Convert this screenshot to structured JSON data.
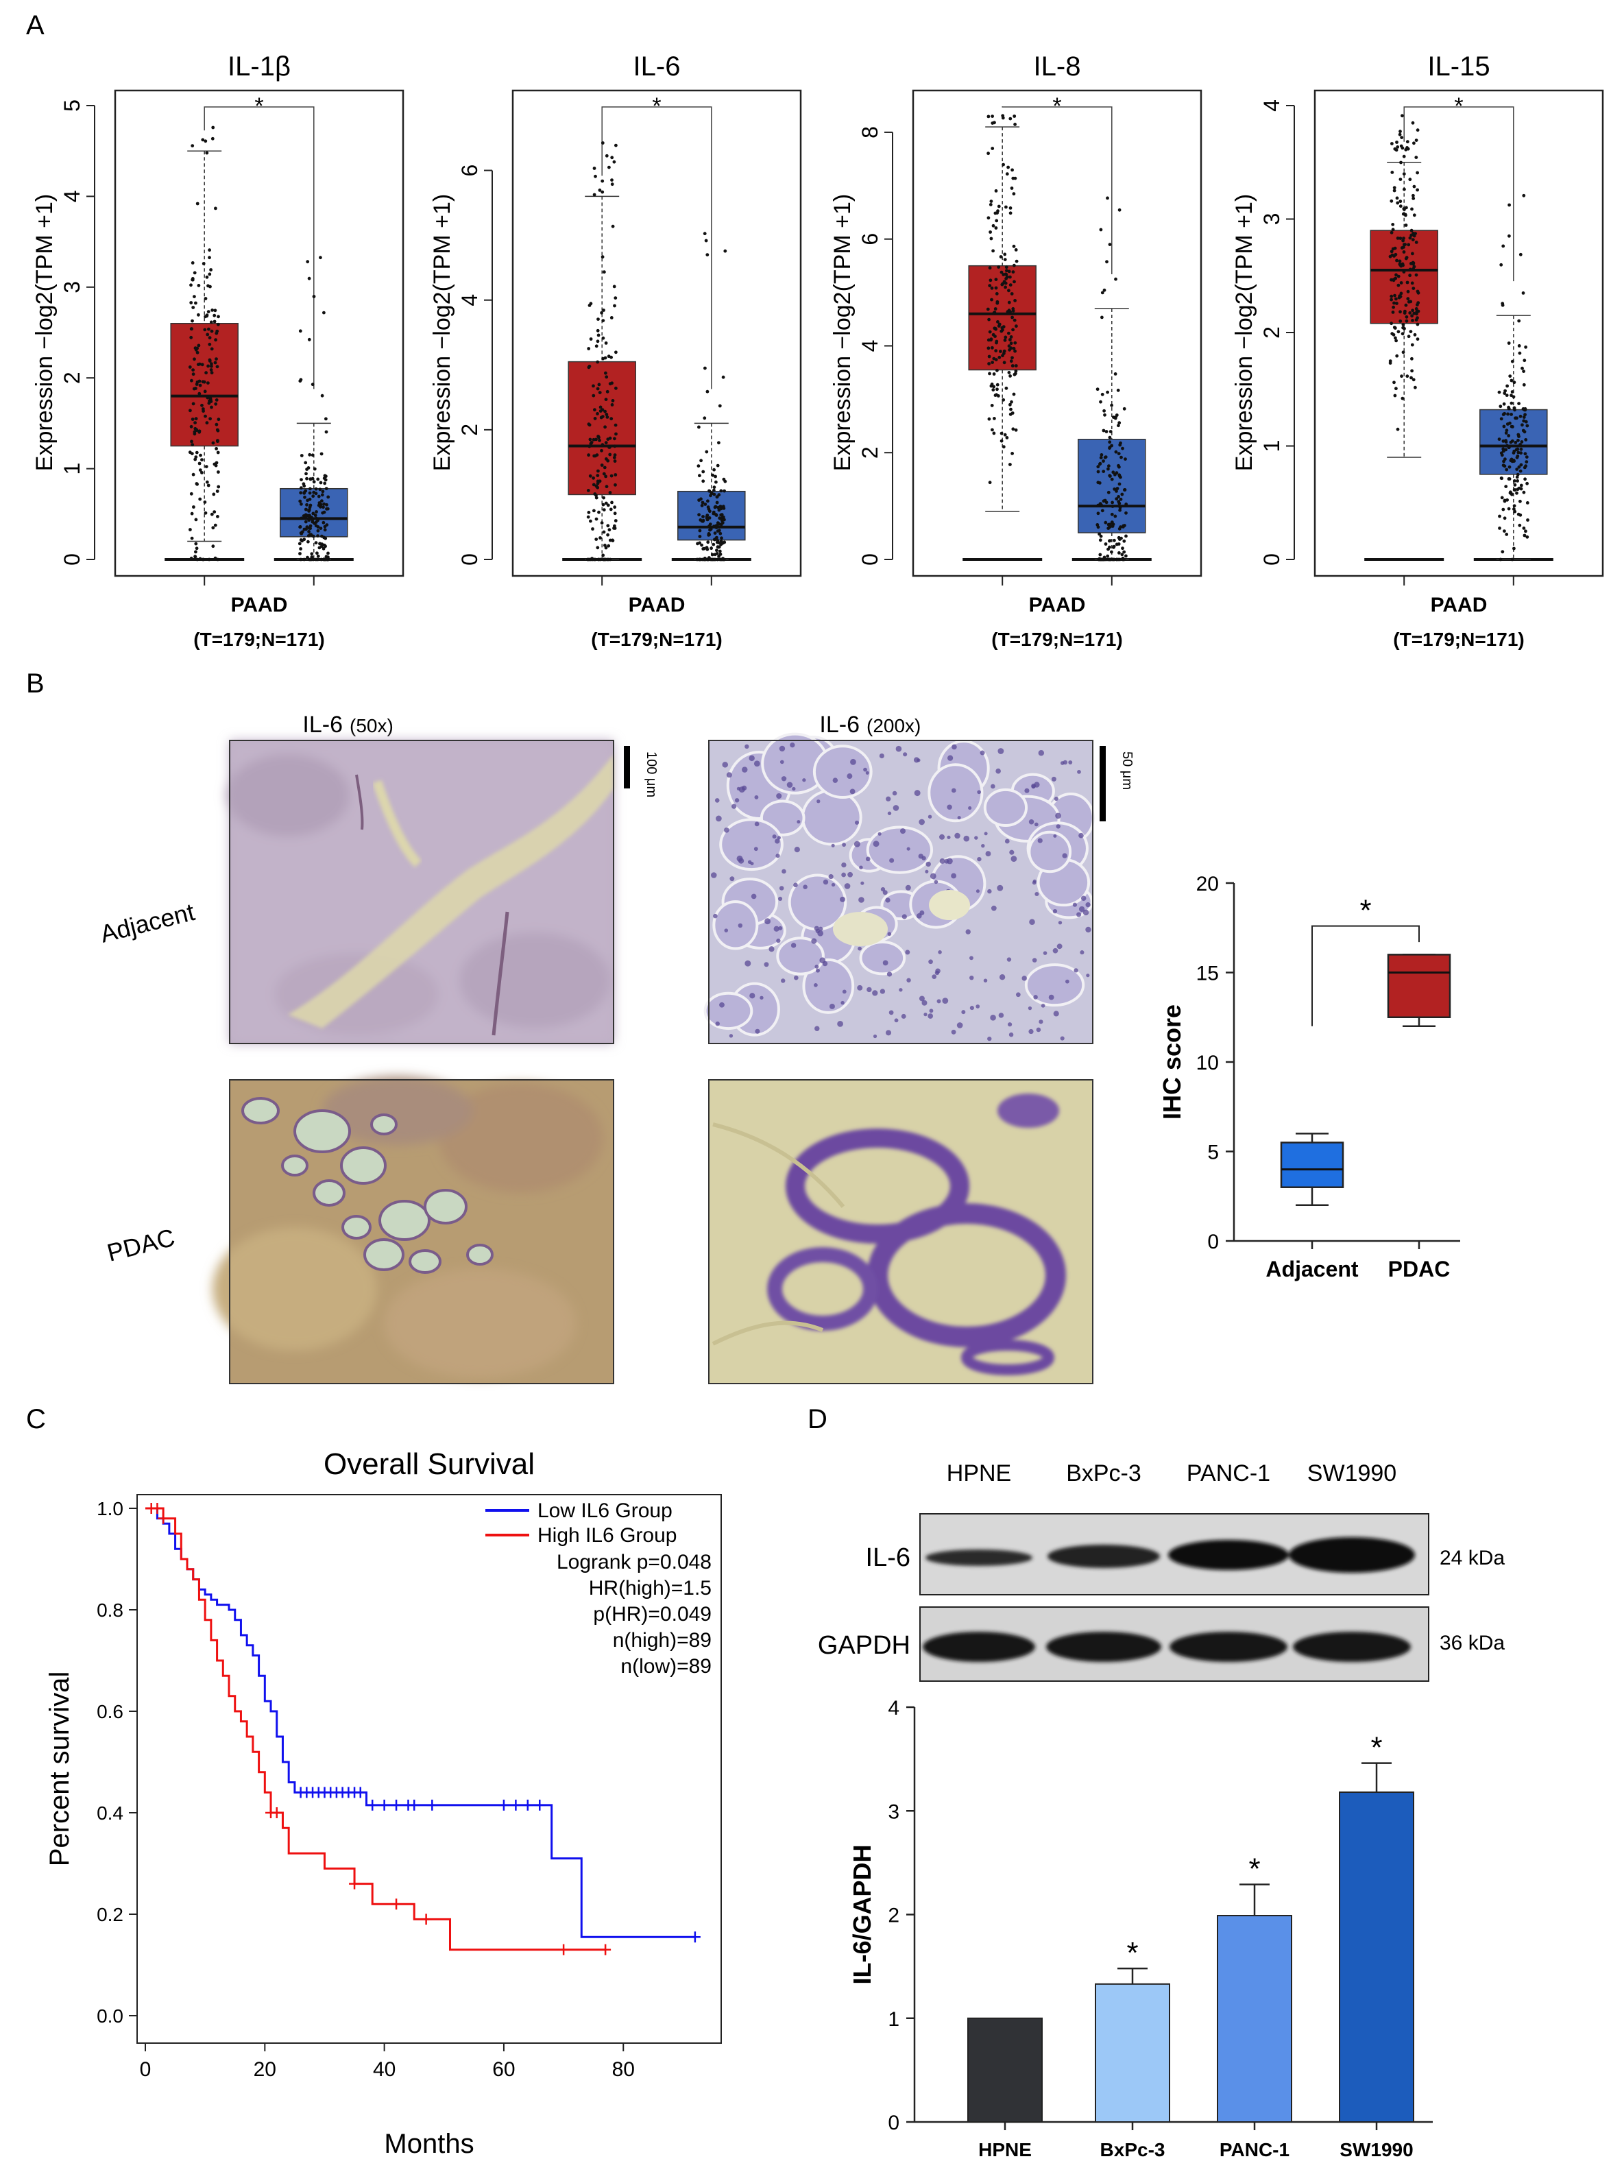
{
  "panel_labels": {
    "a": "A",
    "b": "B",
    "c": "C",
    "d": "D"
  },
  "chart_data": [
    {
      "id": "il1b",
      "type": "box",
      "title": "IL-1β",
      "ylabel": "Expression −log2(TPM +1)",
      "ylim": [
        0,
        5
      ],
      "yticks": [
        0,
        1,
        2,
        3,
        4,
        5
      ],
      "xlabel": "PAAD",
      "xsublabel": "(T=179;N=171)",
      "significance": "*",
      "boxes": [
        {
          "group": "T",
          "color": "#b22222",
          "min": 0.2,
          "q1": 1.25,
          "median": 1.8,
          "q3": 2.6,
          "max": 4.5,
          "n": 179
        },
        {
          "group": "N",
          "color": "#3a64b4",
          "min": 0.0,
          "q1": 0.25,
          "median": 0.45,
          "q3": 0.78,
          "max": 1.5,
          "n": 171
        }
      ]
    },
    {
      "id": "il6",
      "type": "box",
      "title": "IL-6",
      "ylabel": "Expression −log2(TPM +1)",
      "ylim": [
        0,
        7
      ],
      "yticks": [
        0,
        2,
        4,
        6
      ],
      "xlabel": "PAAD",
      "xsublabel": "(T=179;N=171)",
      "significance": "*",
      "boxes": [
        {
          "group": "T",
          "color": "#b22222",
          "min": 0.0,
          "q1": 1.0,
          "median": 1.75,
          "q3": 3.05,
          "max": 5.6,
          "n": 179
        },
        {
          "group": "N",
          "color": "#3a64b4",
          "min": 0.0,
          "q1": 0.3,
          "median": 0.5,
          "q3": 1.05,
          "max": 2.1,
          "n": 171
        }
      ]
    },
    {
      "id": "il8",
      "type": "box",
      "title": "IL-8",
      "ylabel": "Expression −log2(TPM +1)",
      "ylim": [
        0,
        8.5
      ],
      "yticks": [
        0,
        2,
        4,
        6,
        8
      ],
      "xlabel": "PAAD",
      "xsublabel": "(T=179;N=171)",
      "significance": "*",
      "boxes": [
        {
          "group": "T",
          "color": "#b22222",
          "min": 0.9,
          "q1": 3.55,
          "median": 4.6,
          "q3": 5.5,
          "max": 8.1,
          "n": 179
        },
        {
          "group": "N",
          "color": "#3a64b4",
          "min": 0.0,
          "q1": 0.5,
          "median": 1.0,
          "q3": 2.25,
          "max": 4.7,
          "n": 171
        }
      ]
    },
    {
      "id": "il15",
      "type": "box",
      "title": "IL-15",
      "ylabel": "Expression −log2(TPM +1)",
      "ylim": [
        0,
        4
      ],
      "yticks": [
        0,
        1,
        2,
        3,
        4
      ],
      "xlabel": "PAAD",
      "xsublabel": "(T=179;N=171)",
      "significance": "*",
      "boxes": [
        {
          "group": "T",
          "color": "#b22222",
          "min": 0.9,
          "q1": 2.08,
          "median": 2.55,
          "q3": 2.9,
          "max": 3.5,
          "n": 179
        },
        {
          "group": "N",
          "color": "#3a64b4",
          "min": 0.0,
          "q1": 0.75,
          "median": 1.0,
          "q3": 1.32,
          "max": 2.15,
          "n": 171
        }
      ]
    },
    {
      "id": "ihc",
      "type": "box",
      "title": "",
      "ylabel": "IHC score",
      "ylim": [
        0,
        20
      ],
      "yticks": [
        0,
        5,
        10,
        15,
        20
      ],
      "categories": [
        "Adjacent",
        "PDAC"
      ],
      "significance": "*",
      "boxes": [
        {
          "group": "Adjacent",
          "color": "#1f6fe0",
          "min": 2,
          "q1": 3,
          "median": 4,
          "q3": 5.5,
          "max": 6
        },
        {
          "group": "PDAC",
          "color": "#b22222",
          "min": 12,
          "q1": 12.5,
          "median": 15,
          "q3": 16,
          "max": 16
        }
      ]
    },
    {
      "id": "survival",
      "type": "line",
      "title": "Overall Survival",
      "xlabel": "Months",
      "ylabel": "Percent survival",
      "xlim": [
        0,
        95
      ],
      "ylim": [
        0,
        1.0
      ],
      "xticks": [
        0,
        20,
        40,
        60,
        80
      ],
      "yticks": [
        0.0,
        0.2,
        0.4,
        0.6,
        0.8,
        1.0
      ],
      "stats": [
        "Logrank p=0.048",
        "HR(high)=1.5",
        "p(HR)=0.049",
        "n(high)=89",
        "n(low)=89"
      ],
      "series": [
        {
          "name": "Low IL6 Group",
          "color": "#1010ee",
          "x": [
            0,
            2,
            3,
            4,
            5,
            6,
            7,
            8,
            9,
            10,
            11,
            12,
            14,
            15,
            16,
            17,
            18,
            19,
            20,
            21,
            22,
            23,
            24,
            25,
            37,
            68,
            73,
            92
          ],
          "y": [
            1.0,
            0.98,
            0.97,
            0.95,
            0.92,
            0.9,
            0.88,
            0.86,
            0.84,
            0.83,
            0.82,
            0.81,
            0.8,
            0.78,
            0.75,
            0.73,
            0.71,
            0.67,
            0.62,
            0.6,
            0.55,
            0.5,
            0.46,
            0.44,
            0.415,
            0.31,
            0.155,
            0.155
          ],
          "censor_x": [
            26,
            27,
            28,
            29,
            30,
            31,
            32,
            33,
            34,
            35,
            36,
            38,
            40,
            42,
            44,
            45,
            48,
            60,
            62,
            64,
            66,
            92
          ]
        },
        {
          "name": "High IL6 Group",
          "color": "#ee1010",
          "x": [
            0,
            3,
            5,
            6,
            7,
            8,
            9,
            10,
            11,
            12,
            13,
            14,
            15,
            16,
            17,
            18,
            19,
            20,
            21,
            23,
            24,
            30,
            35,
            38,
            45,
            51,
            77
          ],
          "y": [
            1.0,
            0.98,
            0.95,
            0.9,
            0.88,
            0.86,
            0.82,
            0.78,
            0.74,
            0.7,
            0.67,
            0.63,
            0.6,
            0.58,
            0.55,
            0.52,
            0.48,
            0.44,
            0.4,
            0.37,
            0.32,
            0.29,
            0.26,
            0.22,
            0.19,
            0.13,
            0.13
          ],
          "censor_x": [
            1,
            2,
            3,
            21,
            22,
            35,
            42,
            47,
            70,
            77
          ]
        }
      ]
    },
    {
      "id": "wb_quant",
      "type": "bar",
      "title": "",
      "ylabel": "IL-6/GAPDH",
      "ylim": [
        0,
        4
      ],
      "yticks": [
        0,
        1,
        2,
        3,
        4
      ],
      "categories": [
        "HPNE",
        "BxPc-3",
        "PANC-1",
        "SW1990"
      ],
      "values": [
        1.0,
        1.33,
        1.99,
        3.18
      ],
      "errors": [
        0,
        0.15,
        0.3,
        0.28
      ],
      "significance": [
        "",
        "*",
        "*",
        "*"
      ],
      "colors": [
        "#303236",
        "#9cc8f7",
        "#5a90e8",
        "#1c5cbc"
      ]
    }
  ],
  "histology": {
    "col_headers": [
      {
        "name": "IL-6",
        "mag": "(50x)"
      },
      {
        "name": "IL-6",
        "mag": "(200x)"
      }
    ],
    "rows": [
      "Adjacent",
      "PDAC"
    ],
    "scale_bars": [
      "100 μm",
      "50 μm"
    ]
  },
  "western_blot": {
    "lanes": [
      "HPNE",
      "BxPc-3",
      "PANC-1",
      "SW1990"
    ],
    "bands": [
      {
        "protein": "IL-6",
        "kda": "24 kDa"
      },
      {
        "protein": "GAPDH",
        "kda": "36 kDa"
      }
    ]
  }
}
